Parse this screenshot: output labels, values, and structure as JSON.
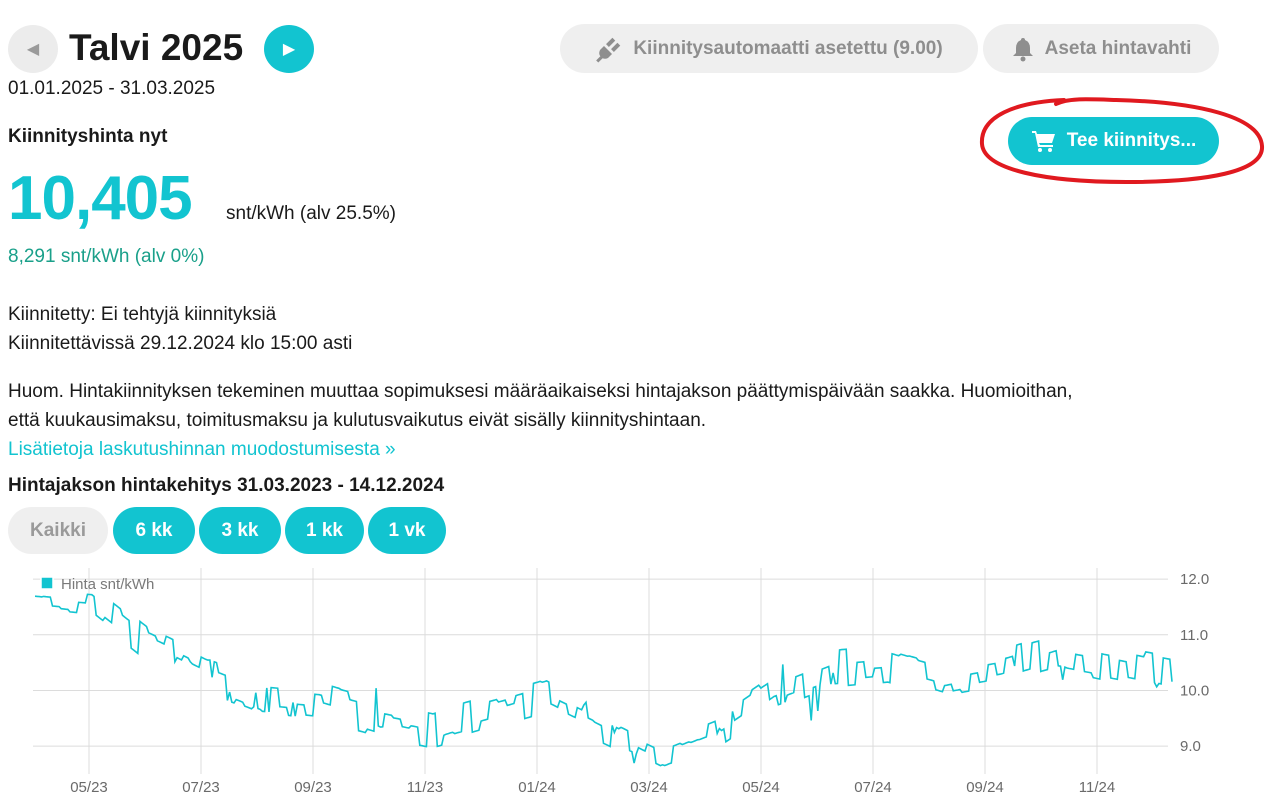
{
  "header": {
    "title": "Talvi 2025",
    "date_range": "01.01.2025 - 31.03.2025",
    "auto_button": "Kiinnitysautomaatti asetettu (9.00)",
    "alert_button": "Aseta hintavahti",
    "prev_icon": "chevron-left-icon",
    "next_icon": "chevron-right-icon"
  },
  "price": {
    "label": "Kiinnityshinta nyt",
    "value": "10,405",
    "unit": "snt/kWh (alv 25.5%)",
    "vat0": "8,291 snt/kWh (alv 0%)"
  },
  "buy_button": {
    "label": "Tee kiinnitys...",
    "icon": "cart-icon"
  },
  "info": {
    "fixed": "Kiinnitetty: Ei tehtyjä kiinnityksiä",
    "available": "Kiinnitettävissä 29.12.2024 klo 15:00 asti",
    "note1": "Huom. Hintakiinnityksen tekeminen muuttaa sopimuksesi määräaikaiseksi hintajakson päättymispäivään saakka. Huomioithan,",
    "note2": "että kuukausimaksu, toimitusmaksu ja kulutusvaikutus eivät sisälly kiinnityshintaan.",
    "link": "Lisätietoja laskutushinnan muodostumisesta »"
  },
  "chart_section": {
    "title": "Hintajakson hintakehitys 31.03.2023 - 14.12.2024",
    "ranges": [
      {
        "label": "Kaikki",
        "active": false
      },
      {
        "label": "6 kk",
        "active": true
      },
      {
        "label": "3 kk",
        "active": true
      },
      {
        "label": "1 kk",
        "active": true
      },
      {
        "label": "1 vk",
        "active": true
      }
    ]
  },
  "colors": {
    "accent": "#12c4d0",
    "green": "#1aa08a",
    "annotation": "#e0191f"
  },
  "chart_data": {
    "type": "line",
    "title": "",
    "xlabel": "",
    "ylabel": "",
    "x_ticks": [
      "05/23",
      "07/23",
      "09/23",
      "11/23",
      "01/24",
      "03/24",
      "05/24",
      "07/24",
      "09/24",
      "11/24"
    ],
    "y_ticks": [
      "9.0",
      "10.0",
      "11.0",
      "12.0"
    ],
    "ylim": [
      8.5,
      12.2
    ],
    "grid": true,
    "legend_position": "top-left",
    "series": [
      {
        "name": "Hinta snt/kWh",
        "x": [
          "04/23",
          "05/23",
          "06/23",
          "07/23",
          "08/23",
          "09/23",
          "10/23",
          "11/23",
          "12/23",
          "01/24",
          "02/24",
          "03/24",
          "04/24",
          "05/24",
          "06/24",
          "07/24",
          "08/24",
          "09/24",
          "10/24",
          "11/24",
          "12/24"
        ],
        "values": [
          11.7,
          11.6,
          10.8,
          10.3,
          9.9,
          9.8,
          9.5,
          9.3,
          9.6,
          9.9,
          9.4,
          8.9,
          9.3,
          10.0,
          10.4,
          10.5,
          10.2,
          10.4,
          10.7,
          10.5,
          10.3
        ]
      }
    ]
  }
}
